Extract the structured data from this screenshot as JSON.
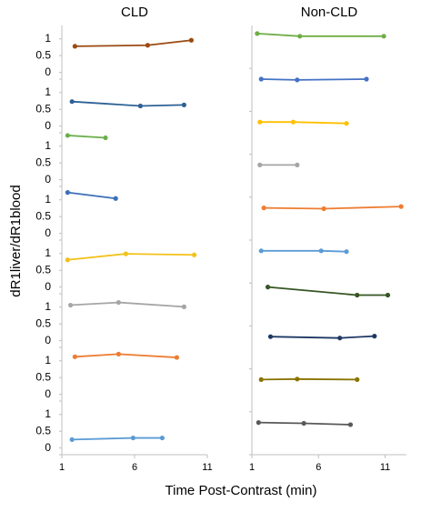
{
  "axis_labels": {
    "x": "Time Post-Contrast (min)",
    "y": "dR1liver/dR1blood"
  },
  "chart_data": [
    {
      "type": "line",
      "title": "CLD",
      "xlim": [
        1,
        11
      ],
      "xticks": [
        1,
        6,
        11
      ],
      "ylim": [
        -0.2,
        1.4
      ],
      "yticks": [
        0,
        0.5,
        1
      ],
      "panels": [
        {
          "series": [
            {
              "color": "#9c4a12",
              "x": [
                1.9,
                6.9,
                9.9
              ],
              "values": [
                0.78,
                0.81,
                0.96
              ]
            }
          ]
        },
        {
          "series": [
            {
              "color": "#2e6296",
              "x": [
                1.7,
                6.4,
                9.4
              ],
              "values": [
                0.73,
                0.6,
                0.63
              ]
            }
          ]
        },
        {
          "series": [
            {
              "color": "#6ab04c",
              "x": [
                1.4,
                4.0
              ],
              "values": [
                1.32,
                1.25
              ]
            }
          ]
        },
        {
          "series": [
            {
              "color": "#3d6fb8",
              "x": [
                1.4,
                4.7
              ],
              "values": [
                1.22,
                1.04
              ]
            }
          ]
        },
        {
          "series": [
            {
              "color": "#f2c21a",
              "x": [
                1.4,
                5.4,
                10.1
              ],
              "values": [
                0.81,
                0.99,
                0.96
              ]
            }
          ]
        },
        {
          "series": [
            {
              "color": "#a5a5a5",
              "x": [
                1.6,
                4.9,
                9.4
              ],
              "values": [
                1.06,
                1.14,
                1.01
              ]
            }
          ]
        },
        {
          "series": [
            {
              "color": "#ed7d31",
              "x": [
                1.9,
                4.9,
                8.9
              ],
              "values": [
                1.12,
                1.2,
                1.1
              ]
            }
          ]
        },
        {
          "series": [
            {
              "color": "#5b9bd5",
              "x": [
                1.7,
                5.9,
                7.9
              ],
              "values": [
                0.25,
                0.3,
                0.3
              ]
            }
          ]
        }
      ]
    },
    {
      "type": "line",
      "title": "Non-CLD",
      "xlim": [
        1,
        12.6
      ],
      "xticks": [
        1,
        6,
        11
      ],
      "ylim": [
        -0.2,
        1.4
      ],
      "panels": [
        {
          "series": [
            {
              "color": "#70ad47",
              "x": [
                1.4,
                4.6,
                10.9
              ],
              "values": [
                1.1,
                1.0,
                1.0
              ]
            }
          ]
        },
        {
          "series": [
            {
              "color": "#4472c4",
              "x": [
                1.7,
                4.4,
                9.6
              ],
              "values": [
                1.0,
                0.97,
                1.0
              ]
            }
          ]
        },
        {
          "series": [
            {
              "color": "#ffc000",
              "x": [
                1.6,
                4.1,
                8.1
              ],
              "values": [
                1.0,
                1.0,
                0.95
              ]
            }
          ]
        },
        {
          "series": [
            {
              "color": "#a5a5a5",
              "x": [
                1.6,
                4.4
              ],
              "values": [
                1.0,
                1.0
              ]
            }
          ]
        },
        {
          "series": [
            {
              "color": "#ed7d31",
              "x": [
                1.9,
                6.4,
                12.2
              ],
              "values": [
                1.0,
                0.97,
                1.05
              ]
            }
          ]
        },
        {
          "series": [
            {
              "color": "#5b9bd5",
              "x": [
                1.7,
                6.2,
                8.1
              ],
              "values": [
                1.0,
                1.0,
                0.97
              ]
            }
          ]
        },
        {
          "series": [
            {
              "color": "#375623",
              "x": [
                2.2,
                8.9,
                11.2
              ],
              "values": [
                1.25,
                0.95,
                0.95
              ]
            }
          ]
        },
        {
          "series": [
            {
              "color": "#1f3864",
              "x": [
                2.4,
                7.6,
                10.2
              ],
              "values": [
                1.0,
                0.95,
                1.02
              ]
            }
          ]
        },
        {
          "series": [
            {
              "color": "#8a7400",
              "x": [
                1.7,
                4.4,
                8.9
              ],
              "values": [
                1.0,
                1.02,
                1.0
              ]
            }
          ]
        },
        {
          "series": [
            {
              "color": "#595959",
              "x": [
                1.5,
                4.9,
                8.4
              ],
              "values": [
                1.0,
                0.97,
                0.92
              ]
            }
          ]
        }
      ]
    }
  ]
}
